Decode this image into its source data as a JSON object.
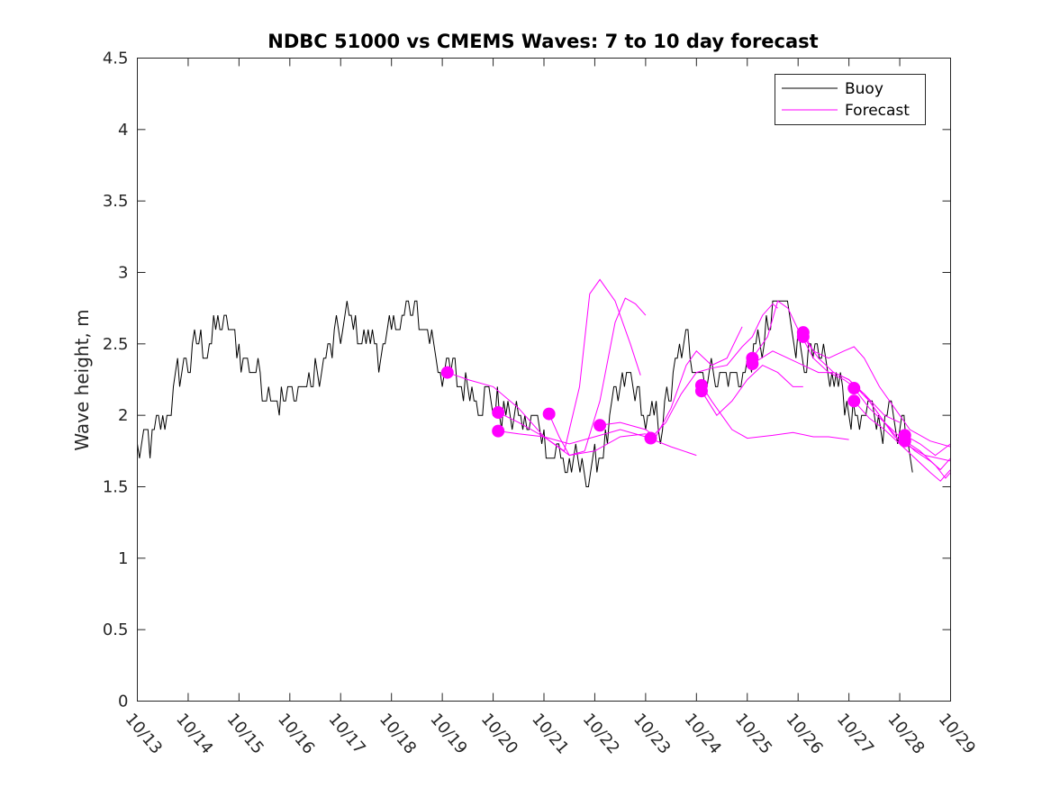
{
  "chart_data": {
    "type": "line",
    "title": "NDBC 51000 vs CMEMS Waves: 7 to 10 day forecast",
    "xlabel": "",
    "ylabel": "Wave height, m",
    "xlim": [
      13,
      29
    ],
    "ylim": [
      0,
      4.5
    ],
    "x_unit": "day of October",
    "xticks": [
      13,
      14,
      15,
      16,
      17,
      18,
      19,
      20,
      21,
      22,
      23,
      24,
      25,
      26,
      27,
      28,
      29
    ],
    "xtick_labels": [
      "10/13",
      "10/14",
      "10/15",
      "10/16",
      "10/17",
      "10/18",
      "10/19",
      "10/20",
      "10/21",
      "10/22",
      "10/23",
      "10/24",
      "10/25",
      "10/26",
      "10/27",
      "10/28",
      "10/29"
    ],
    "yticks": [
      0,
      0.5,
      1,
      1.5,
      2,
      2.5,
      3,
      3.5,
      4,
      4.5
    ],
    "ytick_labels": [
      "0",
      "0.5",
      "1",
      "1.5",
      "2",
      "2.5",
      "3",
      "3.5",
      "4",
      "4.5"
    ],
    "grid": false,
    "legend": {
      "position": "top-right",
      "entries": [
        {
          "label": "Buoy",
          "color": "#000000"
        },
        {
          "label": "Forecast",
          "color": "#ff00ff"
        }
      ]
    },
    "buoy": {
      "name": "Buoy",
      "color": "#000000",
      "anchors": [
        [
          13.0,
          1.75
        ],
        [
          13.3,
          1.8
        ],
        [
          13.5,
          1.95
        ],
        [
          13.8,
          2.3
        ],
        [
          14.0,
          2.4
        ],
        [
          14.3,
          2.5
        ],
        [
          14.6,
          2.65
        ],
        [
          14.9,
          2.5
        ],
        [
          15.1,
          2.4
        ],
        [
          15.3,
          2.3
        ],
        [
          15.6,
          2.2
        ],
        [
          15.8,
          2.1
        ],
        [
          16.0,
          2.15
        ],
        [
          16.3,
          2.2
        ],
        [
          16.6,
          2.3
        ],
        [
          16.9,
          2.55
        ],
        [
          17.1,
          2.7
        ],
        [
          17.3,
          2.6
        ],
        [
          17.6,
          2.5
        ],
        [
          17.9,
          2.45
        ],
        [
          18.1,
          2.7
        ],
        [
          18.4,
          2.7
        ],
        [
          18.7,
          2.6
        ],
        [
          18.9,
          2.4
        ],
        [
          19.2,
          2.25
        ],
        [
          19.5,
          2.2
        ],
        [
          19.8,
          2.15
        ],
        [
          20.1,
          2.05
        ],
        [
          20.4,
          2.0
        ],
        [
          20.7,
          1.95
        ],
        [
          21.0,
          1.85
        ],
        [
          21.3,
          1.7
        ],
        [
          21.6,
          1.6
        ],
        [
          21.9,
          1.6
        ],
        [
          22.1,
          1.75
        ],
        [
          22.3,
          1.95
        ],
        [
          22.6,
          2.25
        ],
        [
          22.9,
          2.1
        ],
        [
          23.0,
          1.9
        ],
        [
          23.3,
          1.95
        ],
        [
          23.5,
          2.2
        ],
        [
          23.7,
          2.45
        ],
        [
          23.9,
          2.45
        ],
        [
          24.2,
          2.3
        ],
        [
          24.5,
          2.3
        ],
        [
          24.8,
          2.25
        ],
        [
          25.0,
          2.35
        ],
        [
          25.2,
          2.45
        ],
        [
          25.5,
          2.7
        ],
        [
          25.7,
          2.8
        ],
        [
          25.9,
          2.6
        ],
        [
          26.1,
          2.45
        ],
        [
          26.4,
          2.3
        ],
        [
          26.6,
          2.25
        ],
        [
          26.8,
          2.2
        ],
        [
          27.0,
          2.05
        ],
        [
          27.3,
          1.95
        ],
        [
          27.6,
          1.95
        ],
        [
          27.9,
          2.0
        ],
        [
          28.1,
          1.95
        ],
        [
          28.25,
          1.75
        ]
      ]
    },
    "forecasts": [
      {
        "name": "Forecast",
        "points": [
          [
            19.1,
            2.3
          ],
          [
            19.5,
            2.25
          ],
          [
            20.0,
            2.2
          ],
          [
            20.5,
            2.05
          ],
          [
            21.0,
            1.85
          ],
          [
            21.5,
            1.72
          ],
          [
            22.0,
            1.75
          ],
          [
            22.5,
            1.85
          ],
          [
            23.0,
            1.87
          ]
        ]
      },
      {
        "name": "Forecast",
        "points": [
          [
            20.1,
            2.02
          ],
          [
            20.5,
            1.95
          ],
          [
            21.0,
            1.85
          ],
          [
            21.5,
            1.8
          ],
          [
            22.0,
            1.85
          ],
          [
            22.5,
            1.9
          ],
          [
            23.0,
            1.85
          ],
          [
            23.5,
            1.78
          ],
          [
            24.0,
            1.72
          ]
        ]
      },
      {
        "name": "Forecast",
        "points": [
          [
            20.1,
            1.89
          ],
          [
            20.5,
            1.87
          ],
          [
            21.0,
            1.85
          ],
          [
            21.4,
            1.75
          ],
          [
            21.7,
            2.2
          ],
          [
            21.9,
            2.85
          ],
          [
            22.1,
            2.95
          ],
          [
            22.4,
            2.8
          ],
          [
            22.7,
            2.5
          ],
          [
            22.9,
            2.28
          ]
        ]
      },
      {
        "name": "Forecast",
        "points": [
          [
            21.1,
            2.01
          ],
          [
            21.3,
            1.85
          ],
          [
            21.5,
            1.72
          ],
          [
            21.8,
            1.75
          ],
          [
            22.1,
            2.1
          ],
          [
            22.4,
            2.65
          ],
          [
            22.6,
            2.82
          ],
          [
            22.8,
            2.78
          ],
          [
            23.0,
            2.7
          ]
        ]
      },
      {
        "name": "Forecast",
        "points": [
          [
            22.1,
            1.93
          ],
          [
            22.5,
            1.95
          ],
          [
            23.0,
            1.9
          ],
          [
            23.2,
            1.85
          ],
          [
            23.5,
            2.05
          ],
          [
            23.8,
            2.35
          ],
          [
            24.0,
            2.45
          ],
          [
            24.3,
            2.35
          ],
          [
            24.6,
            2.4
          ],
          [
            24.9,
            2.62
          ]
        ]
      },
      {
        "name": "Forecast",
        "points": [
          [
            23.1,
            1.84
          ],
          [
            23.4,
            1.95
          ],
          [
            23.7,
            2.15
          ],
          [
            24.0,
            2.3
          ],
          [
            24.3,
            2.33
          ],
          [
            24.6,
            2.35
          ],
          [
            24.9,
            2.48
          ],
          [
            25.1,
            2.55
          ],
          [
            25.3,
            2.7
          ],
          [
            25.5,
            2.78
          ],
          [
            25.6,
            2.75
          ]
        ]
      },
      {
        "name": "Forecast",
        "points": [
          [
            24.1,
            2.21
          ],
          [
            24.3,
            2.1
          ],
          [
            24.5,
            2.0
          ],
          [
            24.7,
            1.9
          ],
          [
            25.0,
            1.84
          ],
          [
            25.5,
            1.86
          ],
          [
            25.9,
            1.88
          ],
          [
            26.3,
            1.85
          ],
          [
            26.6,
            1.85
          ],
          [
            27.0,
            1.83
          ]
        ]
      },
      {
        "name": "Forecast",
        "points": [
          [
            24.1,
            2.17
          ],
          [
            24.4,
            2.0
          ],
          [
            24.7,
            2.1
          ],
          [
            25.0,
            2.25
          ],
          [
            25.3,
            2.35
          ],
          [
            25.6,
            2.3
          ],
          [
            25.9,
            2.2
          ],
          [
            26.1,
            2.2
          ]
        ]
      },
      {
        "name": "Forecast",
        "points": [
          [
            25.1,
            2.4
          ],
          [
            25.4,
            2.55
          ],
          [
            25.6,
            2.8
          ],
          [
            25.8,
            2.75
          ],
          [
            26.0,
            2.6
          ],
          [
            26.3,
            2.4
          ],
          [
            26.6,
            2.3
          ],
          [
            26.9,
            2.25
          ],
          [
            27.3,
            2.15
          ],
          [
            27.7,
            2.0
          ],
          [
            28.0,
            1.95
          ]
        ]
      },
      {
        "name": "Forecast",
        "points": [
          [
            25.1,
            2.36
          ],
          [
            25.5,
            2.45
          ],
          [
            25.8,
            2.4
          ],
          [
            26.1,
            2.35
          ],
          [
            26.4,
            2.3
          ],
          [
            26.7,
            2.3
          ],
          [
            27.0,
            2.25
          ],
          [
            27.4,
            2.1
          ],
          [
            27.7,
            1.95
          ],
          [
            28.0,
            1.82
          ]
        ]
      },
      {
        "name": "Forecast",
        "points": [
          [
            26.1,
            2.58
          ],
          [
            26.3,
            2.45
          ],
          [
            26.6,
            2.4
          ],
          [
            26.9,
            2.45
          ],
          [
            27.1,
            2.48
          ],
          [
            27.3,
            2.4
          ],
          [
            27.6,
            2.2
          ],
          [
            27.9,
            2.05
          ],
          [
            28.2,
            1.9
          ],
          [
            28.6,
            1.82
          ],
          [
            29.0,
            1.78
          ]
        ]
      },
      {
        "name": "Forecast",
        "points": [
          [
            26.1,
            2.55
          ],
          [
            26.4,
            2.4
          ],
          [
            26.7,
            2.3
          ],
          [
            27.0,
            2.25
          ],
          [
            27.3,
            2.15
          ],
          [
            27.6,
            2.0
          ],
          [
            27.9,
            1.85
          ],
          [
            28.2,
            1.78
          ],
          [
            28.5,
            1.72
          ],
          [
            29.0,
            1.68
          ]
        ]
      },
      {
        "name": "Forecast",
        "points": [
          [
            27.1,
            2.19
          ],
          [
            27.4,
            2.05
          ],
          [
            27.7,
            1.95
          ],
          [
            28.0,
            1.85
          ],
          [
            28.3,
            1.75
          ],
          [
            28.6,
            1.68
          ],
          [
            28.8,
            1.62
          ],
          [
            29.0,
            1.7
          ]
        ]
      },
      {
        "name": "Forecast",
        "points": [
          [
            27.1,
            2.1
          ],
          [
            27.4,
            1.98
          ],
          [
            27.7,
            1.9
          ],
          [
            28.0,
            1.8
          ],
          [
            28.3,
            1.7
          ],
          [
            28.6,
            1.6
          ],
          [
            28.8,
            1.54
          ],
          [
            29.0,
            1.62
          ]
        ]
      },
      {
        "name": "Forecast",
        "points": [
          [
            28.1,
            1.86
          ],
          [
            28.4,
            1.8
          ],
          [
            28.7,
            1.72
          ],
          [
            29.0,
            1.8
          ]
        ]
      },
      {
        "name": "Forecast",
        "points": [
          [
            28.1,
            1.82
          ],
          [
            28.4,
            1.75
          ],
          [
            28.7,
            1.65
          ],
          [
            28.9,
            1.56
          ],
          [
            29.0,
            1.6
          ]
        ]
      }
    ],
    "forecast_color": "#ff00ff"
  }
}
